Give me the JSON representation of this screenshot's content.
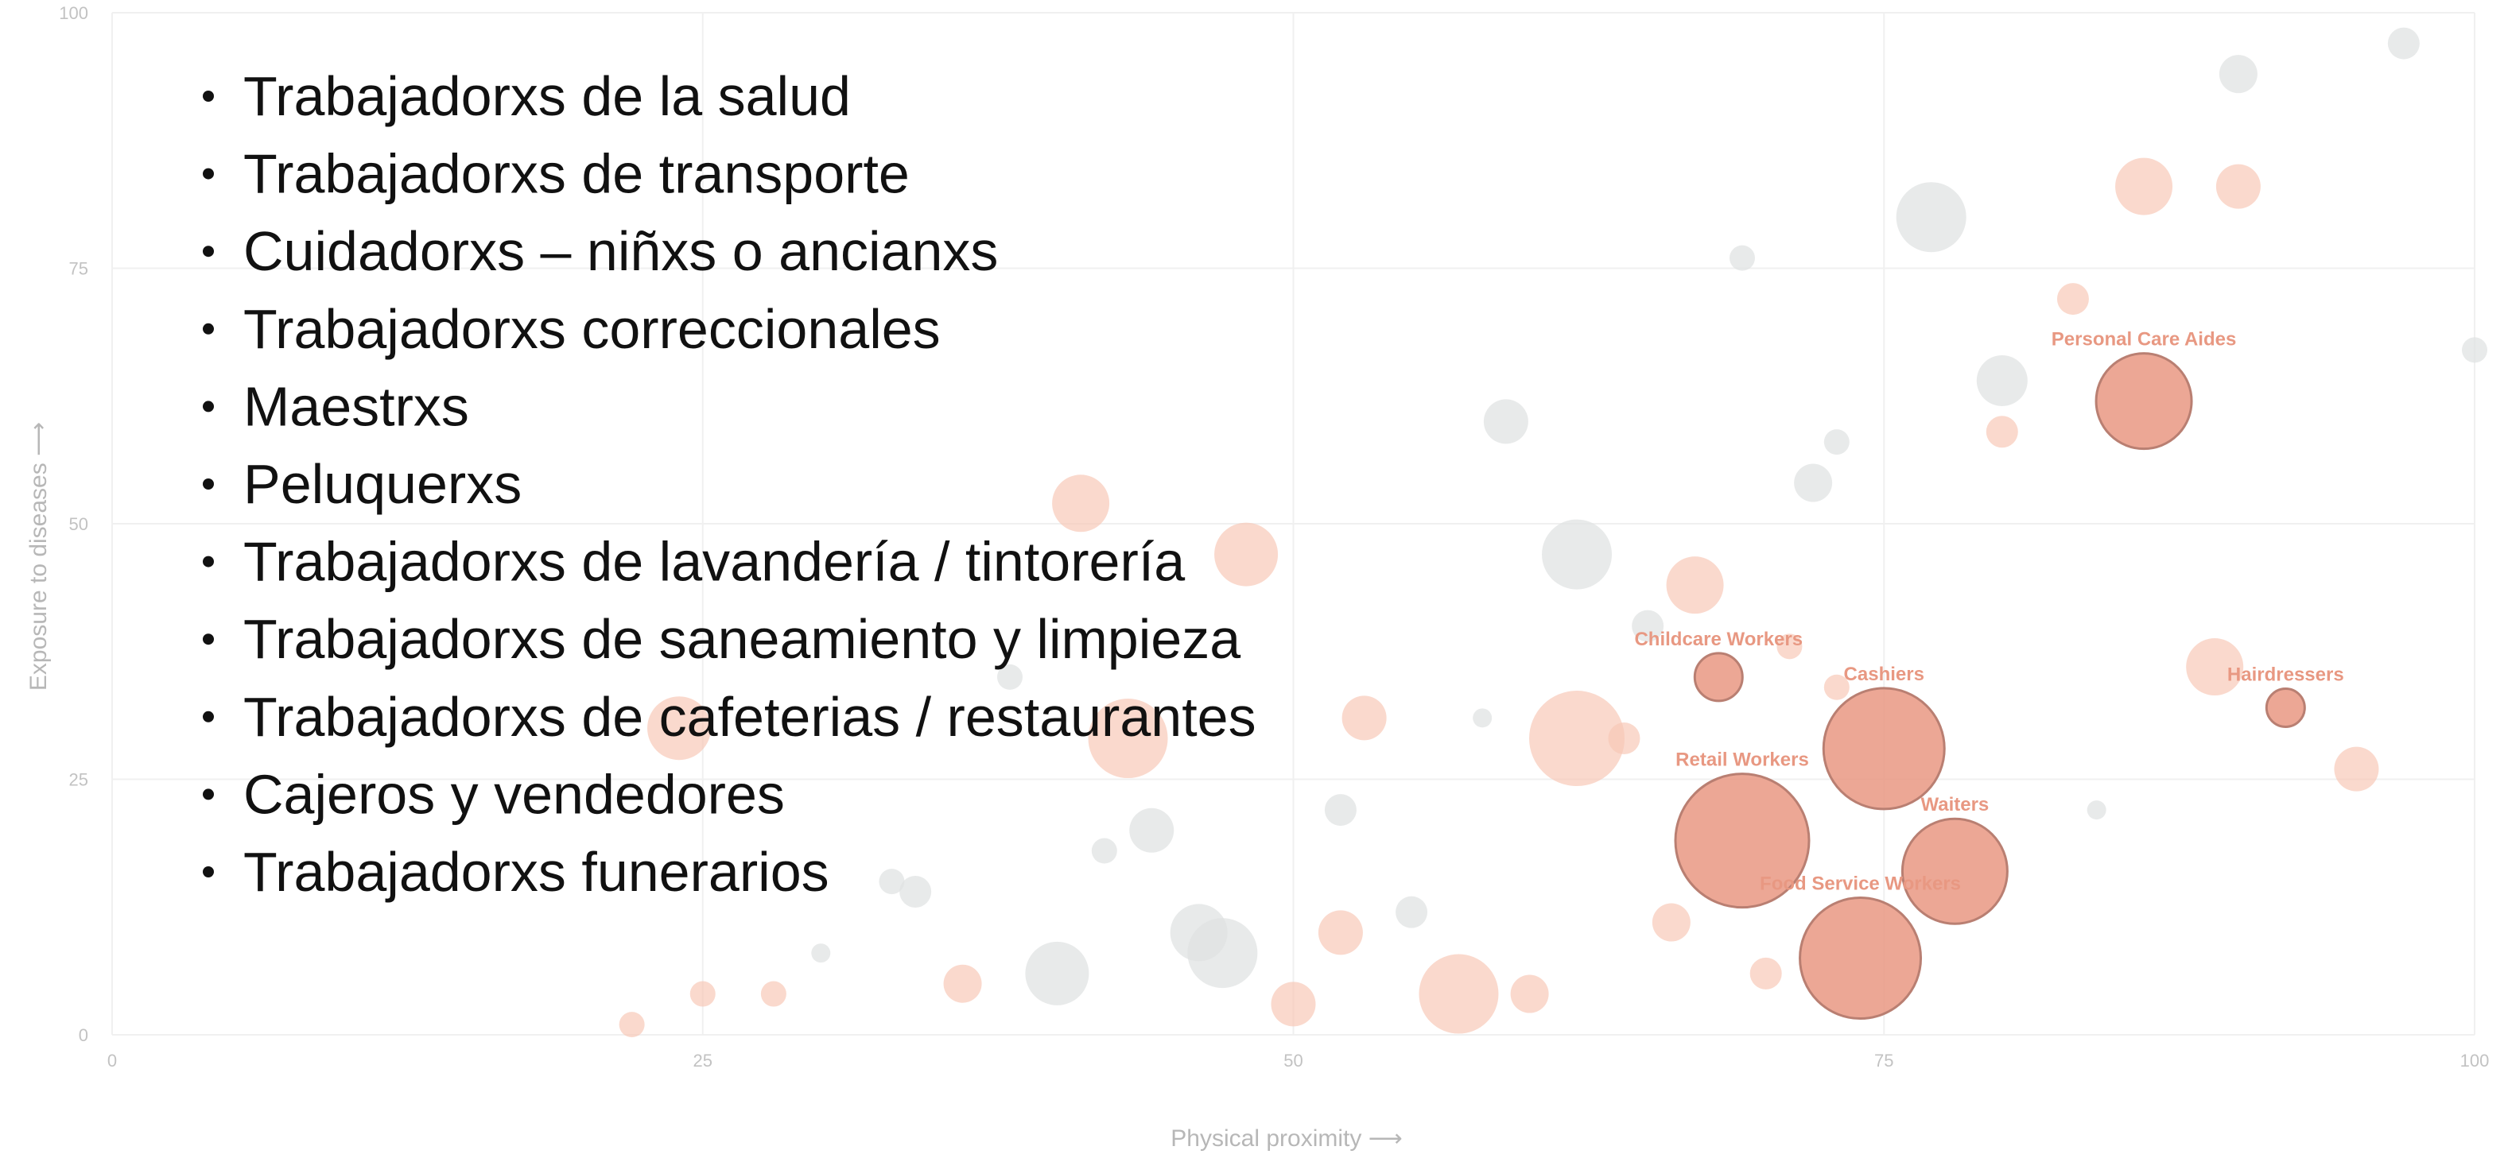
{
  "list": [
    "Trabajadorxs de la salud",
    "Trabajadorxs de transporte",
    "Cuidadorxs – niñxs o ancianxs",
    "Trabajadorxs correccionales",
    "Maestrxs",
    "Peluquerxs",
    "Trabajadorxs de lavandería / tintorería",
    "Trabajadorxs de saneamiento y limpieza",
    "Trabajadorxs de cafeterias / restaurantes",
    "Cajeros y vendedores",
    "Trabajadorxs funerarios"
  ],
  "chart_data": {
    "type": "scatter",
    "x_label": "Physical proximity ⟶",
    "y_label": "Exposure to diseases ⟶",
    "xlim": [
      0,
      100
    ],
    "ylim": [
      0,
      100
    ],
    "xticks": [
      0,
      25,
      50,
      75,
      100
    ],
    "yticks": [
      0,
      25,
      50,
      75,
      100
    ],
    "grid": true,
    "series": [
      {
        "color": "#c9cdcd",
        "x": [
          77,
          59,
          80,
          62,
          72,
          69,
          52,
          47,
          44,
          40,
          34,
          97,
          73,
          33,
          30,
          65,
          58,
          38,
          46,
          42,
          55,
          100,
          84,
          90
        ],
        "y": [
          80,
          60,
          64,
          47,
          54,
          76,
          22,
          8,
          20,
          6,
          14,
          97,
          58,
          15,
          8,
          40,
          31,
          35,
          10,
          18,
          12,
          67,
          22,
          94
        ],
        "sizes": [
          22,
          14,
          16,
          22,
          12,
          8,
          10,
          22,
          14,
          20,
          10,
          10,
          8,
          8,
          6,
          10,
          6,
          8,
          18,
          8,
          10,
          8,
          6,
          12
        ]
      },
      {
        "color": "#f2a488",
        "x": [
          41,
          48,
          22,
          24,
          53,
          62,
          64,
          67,
          66,
          57,
          70,
          71,
          73,
          80,
          86,
          89,
          95,
          90,
          43,
          52,
          60,
          28,
          25,
          36,
          83,
          50
        ],
        "y": [
          52,
          47,
          1,
          30,
          31,
          29,
          29,
          44,
          11,
          4,
          6,
          38,
          34,
          59,
          83,
          36,
          26,
          83,
          29,
          10,
          4,
          4,
          4,
          5,
          72,
          3
        ],
        "sizes": [
          18,
          20,
          8,
          20,
          14,
          30,
          10,
          18,
          12,
          25,
          10,
          8,
          8,
          10,
          18,
          18,
          14,
          14,
          25,
          14,
          12,
          8,
          8,
          12,
          10,
          14
        ]
      },
      {
        "color": "#d9542f",
        "x": [
          86,
          92,
          68,
          75,
          69,
          78,
          74
        ],
        "y": [
          62,
          32,
          35,
          28,
          19,
          16,
          7.5
        ],
        "sizes": [
          30,
          12,
          15,
          38,
          42,
          33,
          38
        ],
        "labels": [
          "Personal Care Aides",
          "Hairdressers",
          "Childcare Workers",
          "Cashiers",
          "Retail Workers",
          "Waiters",
          "Food Service Workers"
        ]
      }
    ]
  }
}
